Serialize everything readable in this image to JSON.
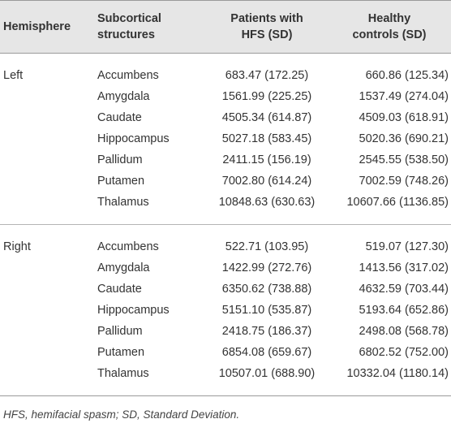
{
  "header": {
    "hemisphere": "Hemisphere",
    "structures_line1": "Subcortical",
    "structures_line2": "structures",
    "patients_line1": "Patients with",
    "patients_line2": "HFS (SD)",
    "controls_line1": "Healthy",
    "controls_line2": "controls (SD)"
  },
  "groups": [
    {
      "hemisphere": "Left",
      "rows": [
        {
          "structure": "Accumbens",
          "patients": "683.47 (172.25)",
          "controls": "660.86 (125.34)"
        },
        {
          "structure": "Amygdala",
          "patients": "1561.99 (225.25)",
          "controls": "1537.49 (274.04)"
        },
        {
          "structure": "Caudate",
          "patients": "4505.34 (614.87)",
          "controls": "4509.03 (618.91)"
        },
        {
          "structure": "Hippocampus",
          "patients": "5027.18 (583.45)",
          "controls": "5020.36 (690.21)"
        },
        {
          "structure": "Pallidum",
          "patients": "2411.15 (156.19)",
          "controls": "2545.55 (538.50)"
        },
        {
          "structure": "Putamen",
          "patients": "7002.80 (614.24)",
          "controls": "7002.59 (748.26)"
        },
        {
          "structure": "Thalamus",
          "patients": "10848.63 (630.63)",
          "controls": "10607.66 (1136.85)"
        }
      ]
    },
    {
      "hemisphere": "Right",
      "rows": [
        {
          "structure": "Accumbens",
          "patients": "522.71 (103.95)",
          "controls": "519.07 (127.30)"
        },
        {
          "structure": "Amygdala",
          "patients": "1422.99 (272.76)",
          "controls": "1413.56 (317.02)"
        },
        {
          "structure": "Caudate",
          "patients": "6350.62 (738.88)",
          "controls": "4632.59 (703.44)"
        },
        {
          "structure": "Hippocampus",
          "patients": "5151.10 (535.87)",
          "controls": "5193.64 (652.86)"
        },
        {
          "structure": "Pallidum",
          "patients": "2418.75 (186.37)",
          "controls": "2498.08 (568.78)"
        },
        {
          "structure": "Putamen",
          "patients": "6854.08 (659.67)",
          "controls": "6802.52 (752.00)"
        },
        {
          "structure": "Thalamus",
          "patients": "10507.01 (688.90)",
          "controls": "10332.04 (1180.14)"
        }
      ]
    }
  ],
  "footnote": "HFS, hemifacial spasm; SD, Standard Deviation."
}
